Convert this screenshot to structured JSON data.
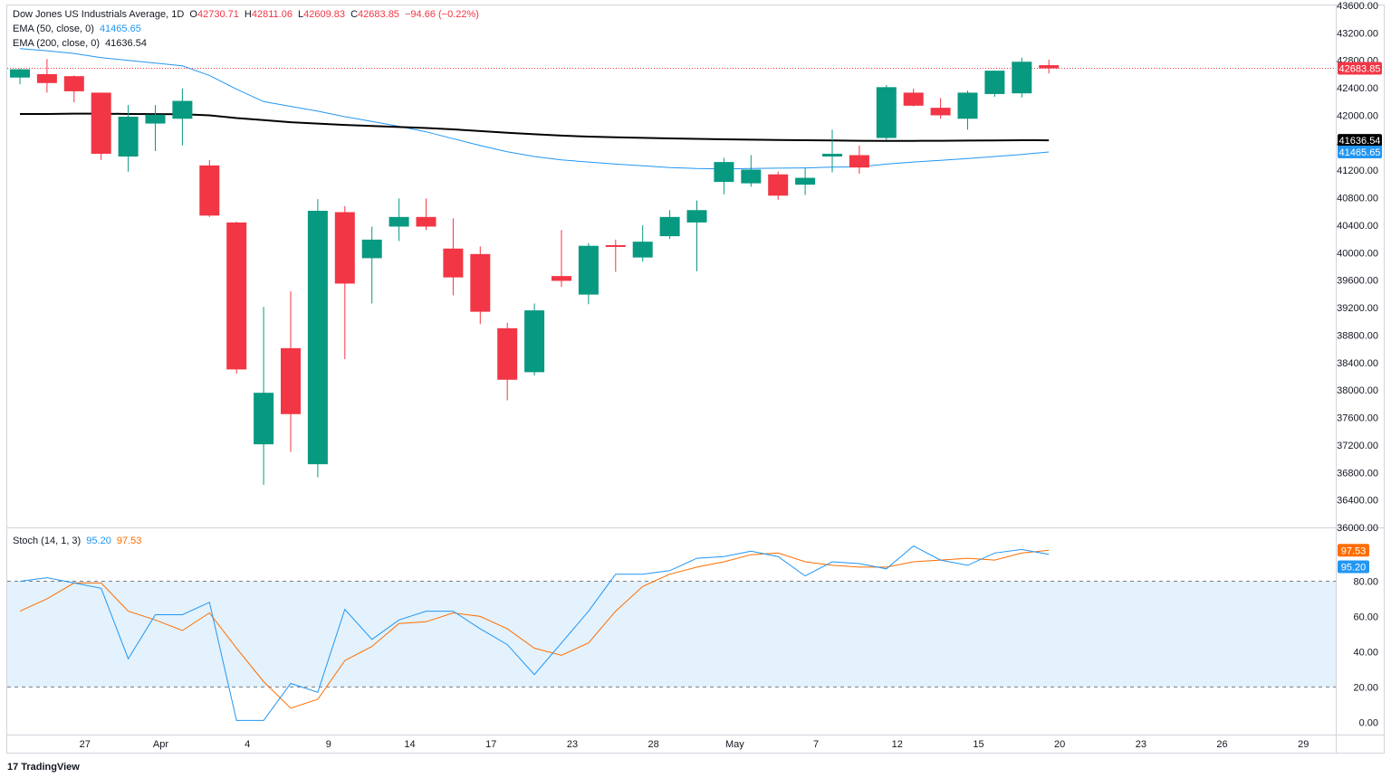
{
  "legend": {
    "symbol": "Dow Jones US Industrials Average, 1D",
    "open_label": "O",
    "open": "42730.71",
    "high_label": "H",
    "high": "42811.06",
    "low_label": "L",
    "low": "42609.83",
    "close_label": "C",
    "close": "42683.85",
    "change": "−94.66 (−0.22%)",
    "ema50_label": "EMA (50, close, 0)",
    "ema50_value": "41465.65",
    "ema200_label": "EMA (200, close, 0)",
    "ema200_value": "41636.54",
    "stoch_label": "Stoch (14, 1, 3)",
    "stoch_k": "95.20",
    "stoch_d": "97.53"
  },
  "branding": {
    "logo_mark": "17",
    "name": "TradingView"
  },
  "colors": {
    "up": "#089981",
    "down": "#f23645",
    "ema50": "#2196f3",
    "ema200": "#000000",
    "stoch_k": "#2196f3",
    "stoch_d": "#ff6d00",
    "stoch_band": "#e3f2fd"
  },
  "chart_data": [
    {
      "type": "candlestick",
      "title": "Dow Jones US Industrials Average, 1D",
      "ylim": [
        36000,
        43600
      ],
      "y_ticks": [
        36000,
        36400,
        36800,
        37200,
        37600,
        38000,
        38400,
        38800,
        39200,
        39600,
        40000,
        40400,
        40800,
        41200,
        41600,
        42000,
        42400,
        42800,
        43200,
        43600
      ],
      "x_tick_labels": [
        "27",
        "Apr",
        "4",
        "9",
        "14",
        "17",
        "23",
        "28",
        "May",
        "7",
        "12",
        "15",
        "20",
        "23",
        "26",
        "29"
      ],
      "x_tick_index": [
        2.4,
        5.2,
        8.4,
        11.4,
        14.4,
        17.4,
        20.4,
        23.4,
        26.4,
        29.4,
        32.4,
        35.4,
        38.4,
        41.4,
        44.4,
        47.4
      ],
      "candles": [
        {
          "o": 42550,
          "h": 42680,
          "l": 42450,
          "c": 42670
        },
        {
          "o": 42600,
          "h": 42820,
          "l": 42330,
          "c": 42470
        },
        {
          "o": 42570,
          "h": 42580,
          "l": 42190,
          "c": 42350
        },
        {
          "o": 42330,
          "h": 42330,
          "l": 41350,
          "c": 41440
        },
        {
          "o": 41400,
          "h": 42150,
          "l": 41180,
          "c": 41980
        },
        {
          "o": 41880,
          "h": 42150,
          "l": 41480,
          "c": 42010
        },
        {
          "o": 41950,
          "h": 42390,
          "l": 41560,
          "c": 42210
        },
        {
          "o": 41270,
          "h": 41350,
          "l": 40520,
          "c": 40540
        },
        {
          "o": 40440,
          "h": 40450,
          "l": 38240,
          "c": 38300
        },
        {
          "o": 37210,
          "h": 39210,
          "l": 36620,
          "c": 37960
        },
        {
          "o": 38610,
          "h": 39440,
          "l": 37100,
          "c": 37650
        },
        {
          "o": 36920,
          "h": 40780,
          "l": 36730,
          "c": 40610
        },
        {
          "o": 40590,
          "h": 40680,
          "l": 38450,
          "c": 39550
        },
        {
          "o": 39920,
          "h": 40380,
          "l": 39260,
          "c": 40190
        },
        {
          "o": 40380,
          "h": 40790,
          "l": 40170,
          "c": 40520
        },
        {
          "o": 40520,
          "h": 40790,
          "l": 40330,
          "c": 40380
        },
        {
          "o": 40060,
          "h": 40500,
          "l": 39380,
          "c": 39640
        },
        {
          "o": 39980,
          "h": 40090,
          "l": 38960,
          "c": 39140
        },
        {
          "o": 38900,
          "h": 38980,
          "l": 37850,
          "c": 38150
        },
        {
          "o": 38260,
          "h": 39260,
          "l": 38210,
          "c": 39160
        },
        {
          "o": 39660,
          "h": 40330,
          "l": 39500,
          "c": 39590
        },
        {
          "o": 39390,
          "h": 40140,
          "l": 39250,
          "c": 40100
        },
        {
          "o": 40110,
          "h": 40190,
          "l": 39720,
          "c": 40100
        },
        {
          "o": 39930,
          "h": 40400,
          "l": 39870,
          "c": 40160
        },
        {
          "o": 40240,
          "h": 40620,
          "l": 40200,
          "c": 40520
        },
        {
          "o": 40440,
          "h": 40760,
          "l": 39730,
          "c": 40620
        },
        {
          "o": 41030,
          "h": 41380,
          "l": 40850,
          "c": 41320
        },
        {
          "o": 41010,
          "h": 41420,
          "l": 40960,
          "c": 41210
        },
        {
          "o": 41140,
          "h": 41180,
          "l": 40770,
          "c": 40830
        },
        {
          "o": 40990,
          "h": 41230,
          "l": 40840,
          "c": 41090
        },
        {
          "o": 41400,
          "h": 41790,
          "l": 41170,
          "c": 41440
        },
        {
          "o": 41420,
          "h": 41560,
          "l": 41150,
          "c": 41240
        },
        {
          "o": 41670,
          "h": 42440,
          "l": 41640,
          "c": 42410
        },
        {
          "o": 42330,
          "h": 42390,
          "l": 42130,
          "c": 42140
        },
        {
          "o": 42110,
          "h": 42250,
          "l": 41950,
          "c": 42000
        },
        {
          "o": 41950,
          "h": 42360,
          "l": 41790,
          "c": 42330
        },
        {
          "o": 42310,
          "h": 42650,
          "l": 42270,
          "c": 42650
        },
        {
          "o": 42320,
          "h": 42840,
          "l": 42260,
          "c": 42780
        },
        {
          "o": 42730,
          "h": 42811,
          "l": 42610,
          "c": 42684
        }
      ],
      "ema200": [
        42020,
        42020,
        42025,
        42025,
        42020,
        42018,
        42015,
        42000,
        41960,
        41930,
        41900,
        41880,
        41860,
        41845,
        41830,
        41815,
        41795,
        41770,
        41745,
        41725,
        41705,
        41690,
        41680,
        41672,
        41664,
        41657,
        41650,
        41645,
        41640,
        41637,
        41633,
        41630,
        41628,
        41628,
        41630,
        41632,
        41635,
        41637,
        41636.54
      ],
      "ema50": [
        42970,
        42940,
        42900,
        42840,
        42800,
        42760,
        42720,
        42580,
        42380,
        42200,
        42130,
        42060,
        41980,
        41910,
        41840,
        41760,
        41660,
        41560,
        41470,
        41400,
        41350,
        41320,
        41290,
        41265,
        41240,
        41225,
        41220,
        41225,
        41230,
        41235,
        41245,
        41250,
        41290,
        41320,
        41345,
        41370,
        41400,
        41430,
        41465.65
      ],
      "last_price": 42683.85
    },
    {
      "type": "line",
      "title": "Stoch (14, 1, 3)",
      "ylim": [
        -7,
        110
      ],
      "y_ticks": [
        0,
        20,
        40,
        60,
        80
      ],
      "bands": [
        20,
        80
      ],
      "series": [
        {
          "name": "%K",
          "values": [
            80,
            82,
            79,
            76,
            36,
            61,
            61,
            68,
            1,
            1,
            22,
            17,
            64,
            47,
            58,
            63,
            63,
            53,
            44,
            27,
            45,
            63,
            84,
            84,
            86,
            93,
            94,
            97,
            94,
            83,
            91,
            90,
            87,
            100,
            92,
            89,
            96,
            98,
            95.2
          ]
        },
        {
          "name": "%D",
          "values": [
            63,
            70,
            79,
            79,
            63,
            58,
            52,
            62,
            42,
            23,
            8,
            13,
            35,
            43,
            56,
            57,
            62,
            60,
            53,
            42,
            38,
            45,
            63,
            77,
            84,
            88,
            91,
            95,
            96,
            91,
            89,
            88,
            88,
            91,
            92,
            93,
            92,
            96,
            97.53
          ]
        }
      ]
    }
  ]
}
